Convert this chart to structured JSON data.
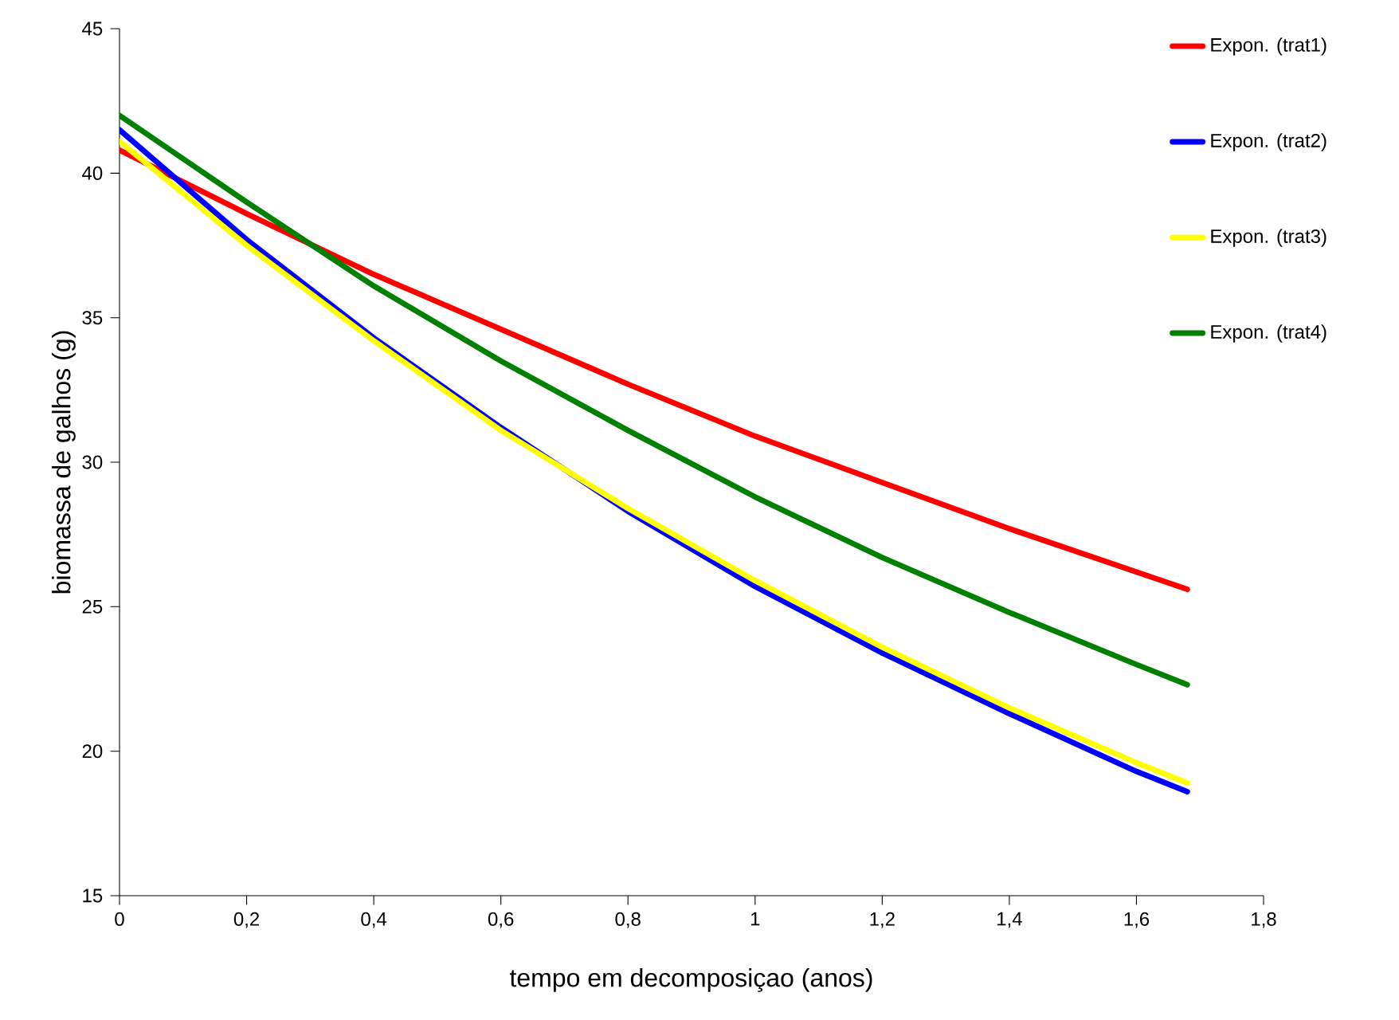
{
  "chart_data": {
    "type": "line",
    "xlabel": "tempo em decomposiçao (anos)",
    "ylabel": "biomassa de galhos (g)",
    "x": [
      0,
      0.2,
      0.4,
      0.6,
      0.8,
      1.0,
      1.2,
      1.4,
      1.6,
      1.68
    ],
    "series": [
      {
        "name": "Expon. (trat1)",
        "color": "#ff0000",
        "values": [
          40.8,
          38.6,
          36.5,
          34.6,
          32.7,
          30.9,
          29.3,
          27.7,
          26.2,
          25.6
        ]
      },
      {
        "name": "Expon. (trat2)",
        "color": "#0000ff",
        "values": [
          41.5,
          37.7,
          34.3,
          31.2,
          28.3,
          25.7,
          23.4,
          21.3,
          19.3,
          18.6
        ]
      },
      {
        "name": "Expon. (trat3)",
        "color": "#ffff00",
        "values": [
          41.1,
          37.5,
          34.2,
          31.1,
          28.4,
          25.9,
          23.6,
          21.5,
          19.6,
          18.9
        ]
      },
      {
        "name": "Expon. (trat4)",
        "color": "#008000",
        "values": [
          42.0,
          39.0,
          36.1,
          33.5,
          31.1,
          28.8,
          26.7,
          24.8,
          23.0,
          22.3
        ]
      }
    ],
    "xlim": [
      0,
      1.8
    ],
    "xticks": [
      {
        "value": 0,
        "label": "0"
      },
      {
        "value": 0.2,
        "label": "0,2"
      },
      {
        "value": 0.4,
        "label": "0,4"
      },
      {
        "value": 0.6,
        "label": "0,6"
      },
      {
        "value": 0.8,
        "label": "0,8"
      },
      {
        "value": 1,
        "label": "1"
      },
      {
        "value": 1.2,
        "label": "1,2"
      },
      {
        "value": 1.4,
        "label": "1,4"
      },
      {
        "value": 1.6,
        "label": "1,6"
      },
      {
        "value": 1.8,
        "label": "1,8"
      }
    ],
    "ylim": [
      15,
      45
    ],
    "yticks": [
      15,
      20,
      25,
      30,
      35,
      40,
      45
    ],
    "grid": false,
    "legend": "top right",
    "marker": "none",
    "line_style": "solid"
  }
}
